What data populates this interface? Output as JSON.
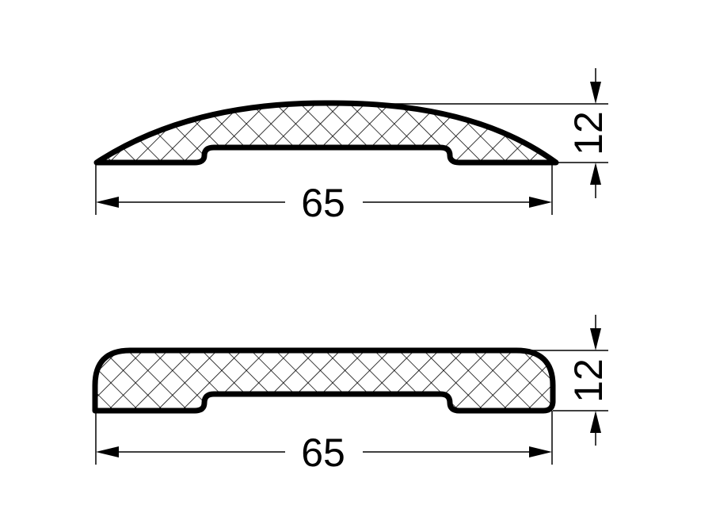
{
  "profiles": [
    {
      "id": "curved-profile",
      "width_label": "65",
      "height_label": "12"
    },
    {
      "id": "flat-profile",
      "width_label": "65",
      "height_label": "12"
    }
  ],
  "colors": {
    "stroke": "#000000",
    "background": "#ffffff"
  }
}
